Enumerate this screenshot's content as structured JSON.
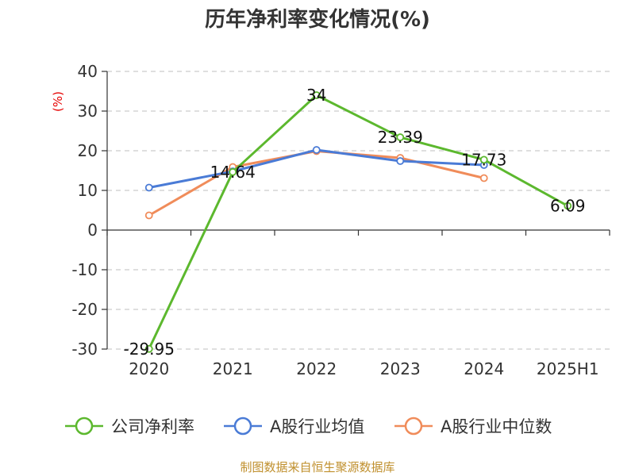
{
  "title": "历年净利率变化情况(%)",
  "source": "制图数据来自恒生聚源数据库",
  "chart_data": {
    "type": "line",
    "title": "历年净利率变化情况(%)",
    "ylabel": "(%)",
    "xlabel": "",
    "ylim": [
      -30,
      40
    ],
    "yticks": [
      40,
      30,
      20,
      10,
      0,
      -10,
      -20,
      -30
    ],
    "categories": [
      "2020",
      "2021",
      "2022",
      "2023",
      "2024",
      "2025H1"
    ],
    "grid": true,
    "legend_position": "bottom",
    "series": [
      {
        "name": "公司净利率",
        "color": "#5cb82e",
        "values": [
          -29.95,
          14.64,
          34,
          23.39,
          17.73,
          6.09
        ],
        "labels": [
          "-29.95",
          "14.64",
          "34",
          "23.39",
          "17.73",
          "6.09"
        ]
      },
      {
        "name": "A股行业均值",
        "color": "#4a7bd6",
        "values": [
          10.7,
          14.8,
          20.2,
          17.4,
          16.4,
          null
        ]
      },
      {
        "name": "A股行业中位数",
        "color": "#f08c5a",
        "values": [
          3.7,
          15.9,
          19.9,
          18.2,
          13.1,
          null
        ]
      }
    ]
  }
}
